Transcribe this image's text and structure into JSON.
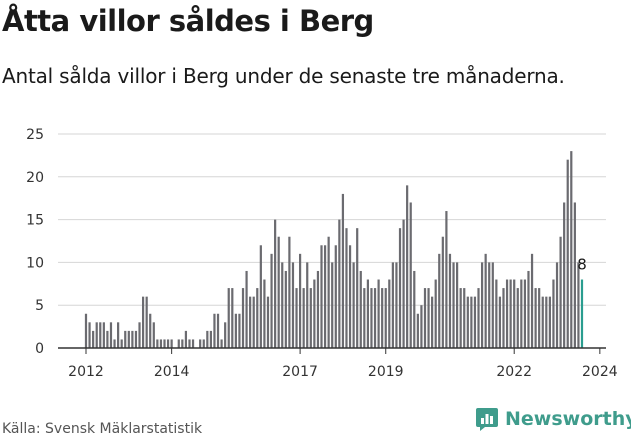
{
  "title": "Åtta villor såldes i Berg",
  "subtitle": "Antal sålda villor i Berg under de senaste tre månaderna.",
  "source": "Källa: Svensk Mäklarstatistik",
  "brand": "Newsworthy",
  "colors": {
    "bar": "#6b6b70",
    "highlight": "#2a9d8f",
    "grid": "#d6d6d6",
    "axis": "#333333",
    "brand": "#3f9c8c"
  },
  "chart_data": {
    "type": "bar",
    "title": "Åtta villor såldes i Berg",
    "xlabel": "",
    "ylabel": "",
    "ylim": [
      0,
      25
    ],
    "yticks": [
      0,
      5,
      10,
      15,
      20,
      25
    ],
    "x_start": 2012,
    "x_end": 2024.45,
    "xticks": [
      {
        "year": 2012,
        "label": "2012"
      },
      {
        "year": 2014,
        "label": "2014"
      },
      {
        "year": 2017,
        "label": "2017"
      },
      {
        "year": 2019,
        "label": "2019"
      },
      {
        "year": 2022,
        "label": "2022"
      },
      {
        "year": 2024,
        "label": "2024"
      }
    ],
    "period_start": "2012-01",
    "values": [
      4,
      3,
      2,
      3,
      3,
      3,
      2,
      3,
      1,
      3,
      1,
      2,
      2,
      2,
      2,
      3,
      6,
      6,
      4,
      3,
      1,
      1,
      1,
      1,
      1,
      0,
      1,
      1,
      2,
      1,
      1,
      0,
      1,
      1,
      2,
      2,
      4,
      4,
      1,
      3,
      7,
      7,
      4,
      4,
      7,
      9,
      6,
      6,
      7,
      12,
      8,
      6,
      11,
      15,
      13,
      10,
      9,
      13,
      10,
      7,
      11,
      7,
      10,
      7,
      8,
      9,
      12,
      12,
      13,
      10,
      12,
      15,
      18,
      14,
      12,
      10,
      14,
      9,
      7,
      8,
      7,
      7,
      8,
      7,
      7,
      8,
      10,
      10,
      14,
      15,
      19,
      17,
      9,
      4,
      5,
      7,
      7,
      6,
      8,
      11,
      13,
      16,
      11,
      10,
      10,
      7,
      7,
      6,
      6,
      6,
      7,
      10,
      11,
      10,
      10,
      8,
      6,
      7,
      8,
      8,
      8,
      7,
      8,
      8,
      9,
      11,
      7,
      7,
      6,
      6,
      6,
      8,
      10,
      13,
      17,
      22,
      23,
      17,
      10,
      8
    ],
    "highlight_label": "8",
    "highlight_value": 8
  }
}
